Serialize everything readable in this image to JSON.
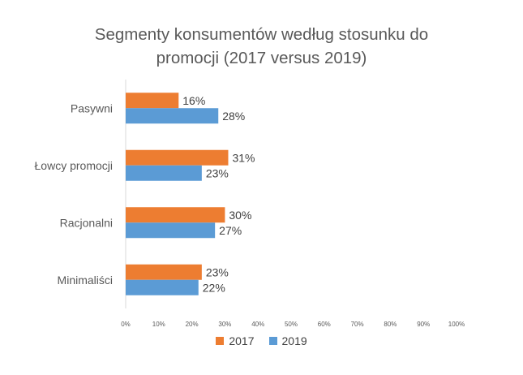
{
  "chart_data": {
    "type": "bar",
    "orientation": "horizontal",
    "title_line1": "Segmenty konsumentów według stosunku do",
    "title_line2": "promocji (2017 versus 2019)",
    "categories": [
      "Pasywni",
      "Łowcy promocji",
      "Racjonalni",
      "Minimaliści"
    ],
    "series": [
      {
        "name": "2017",
        "color": "#ED7D31",
        "values": [
          16,
          31,
          30,
          23
        ],
        "labels": [
          "16%",
          "31%",
          "30%",
          "23%"
        ]
      },
      {
        "name": "2019",
        "color": "#5B9BD5",
        "values": [
          28,
          23,
          27,
          22
        ],
        "labels": [
          "28%",
          "23%",
          "27%",
          "22%"
        ]
      }
    ],
    "xlim": [
      0,
      100
    ],
    "xticks": [
      "0%",
      "10%",
      "20%",
      "30%",
      "40%",
      "50%",
      "60%",
      "70%",
      "80%",
      "90%",
      "100%"
    ],
    "legend_position": "bottom",
    "grid": false
  }
}
